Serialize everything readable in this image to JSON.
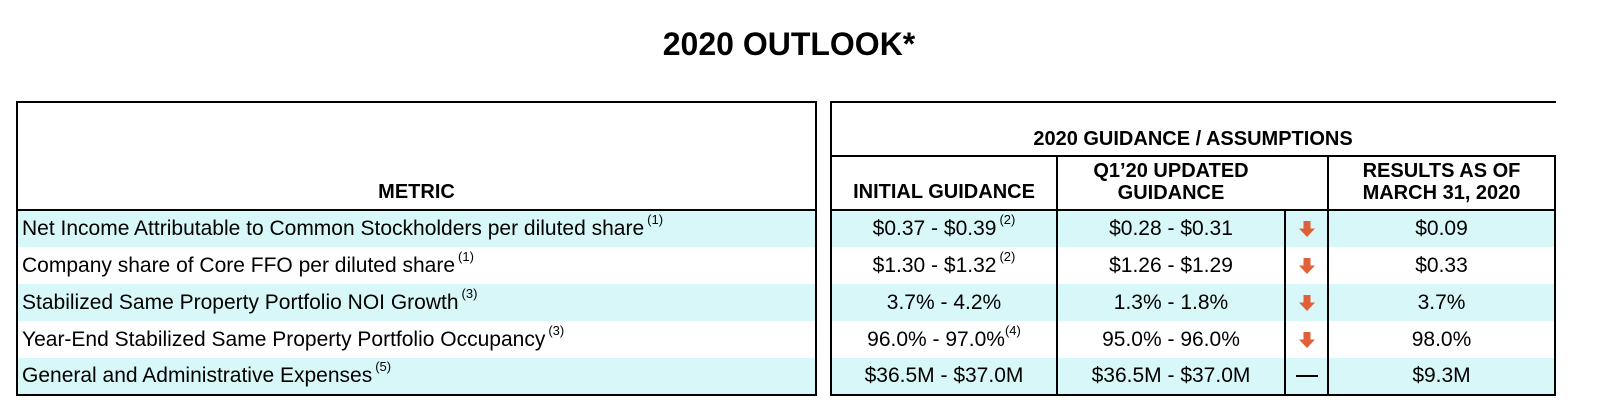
{
  "title": "2020 OUTLOOK*",
  "headers": {
    "metric": "METRIC",
    "group": "2020 GUIDANCE / ASSUMPTIONS",
    "initial": "INITIAL GUIDANCE",
    "updated_line1": "Q1’20 UPDATED",
    "updated_line2": "GUIDANCE",
    "results_line1": "RESULTS AS OF",
    "results_line2": "MARCH 31, 2020"
  },
  "rows": [
    {
      "metric": "Net Income Attributable to Common Stockholders per diluted share",
      "metric_note": "(1)",
      "initial": "$0.37 - $0.39",
      "initial_note": "(2)",
      "updated": "$0.28 - $0.31",
      "change": "down",
      "results": "$0.09"
    },
    {
      "metric": "Company share of Core FFO per diluted share",
      "metric_note": "(1)",
      "initial": "$1.30 - $1.32",
      "initial_note": "(2)",
      "updated": "$1.26 - $1.29",
      "change": "down",
      "results": "$0.33"
    },
    {
      "metric": "Stabilized Same Property Portfolio NOI Growth",
      "metric_note": "(3)",
      "initial": "3.7% - 4.2%",
      "initial_note": "",
      "updated": "1.3% - 1.8%",
      "change": "down",
      "results": "3.7%"
    },
    {
      "metric": "Year-End Stabilized Same Property Portfolio Occupancy",
      "metric_note": "(3)",
      "initial": "96.0% - 97.0%",
      "initial_note": "(4)",
      "updated": "95.0% - 96.0%",
      "change": "down",
      "results": "98.0%"
    },
    {
      "metric": "General and Administrative Expenses",
      "metric_note": "(5)",
      "initial": "$36.5M - $37.0M",
      "initial_note": "",
      "updated": "$36.5M - $37.0M",
      "change": "unchanged",
      "results": "$9.3M"
    }
  ],
  "colors": {
    "row_highlight": "#d8f7f9",
    "down_arrow": "#e0603a"
  },
  "icons": {
    "down": "arrow-down-icon",
    "unchanged": "dash-icon"
  }
}
